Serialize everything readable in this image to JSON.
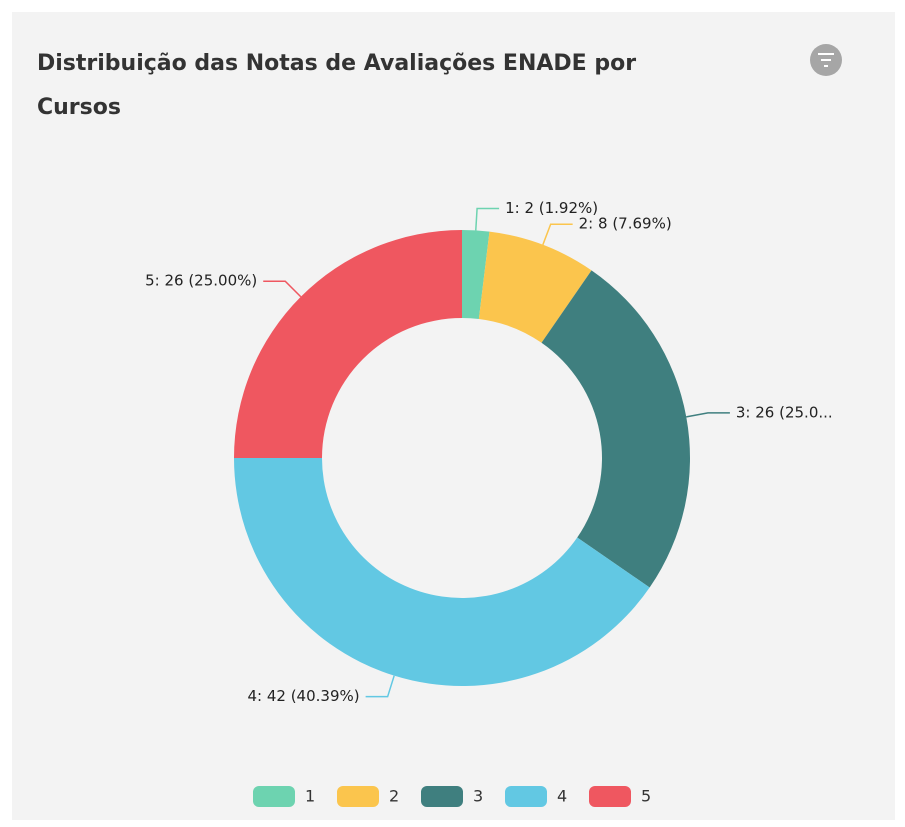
{
  "chart_data": {
    "type": "donut",
    "title": "Distribuição das Notas de Avaliações ENADE por Cursos",
    "categories": [
      "1",
      "2",
      "3",
      "4",
      "5"
    ],
    "values": [
      2,
      8,
      26,
      42,
      26
    ],
    "value_labels": [
      "1: 2 (1.92%)",
      "2: 8 (7.69%)",
      "3: 26 (25.0...",
      "4: 42 (40.39%)",
      "5: 26 (25.00%)"
    ],
    "colors": [
      "#6dd3b0",
      "#fbc54d",
      "#3f7f7f",
      "#62c8e3",
      "#ef5760"
    ]
  }
}
